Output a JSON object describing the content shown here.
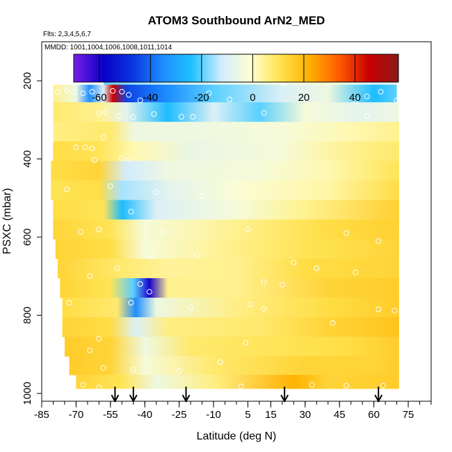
{
  "chart_data": {
    "type": "heatmap",
    "title": "ATOM3 Southbound ArN2_MED",
    "flights_label": "Flts: 2,3,4,5,6,7",
    "dates_label": "MMDD: 1001,1004,1006,1008,1011,1014",
    "xlabel": "Latitude (deg N)",
    "ylabel": "PSXC (mbar)",
    "xlim": [
      -85,
      85
    ],
    "ylim": [
      1020,
      100
    ],
    "x_ticks": [
      -85,
      -70,
      -55,
      -40,
      -25,
      -10,
      5,
      15,
      30,
      45,
      60,
      75
    ],
    "y_ticks": [
      200,
      400,
      600,
      800,
      1000
    ],
    "colorbar": {
      "range": [
        -70,
        57
      ],
      "ticks": [
        -60,
        -40,
        -20,
        0,
        20,
        40
      ],
      "colors": [
        "#7a1fe6",
        "#0a00c8",
        "#0a35e0",
        "#1e8cff",
        "#1ec2ff",
        "#d2ecff",
        "#ffffd0",
        "#ffe24d",
        "#ffb000",
        "#ff5a00",
        "#c80000",
        "#8b1a1a"
      ]
    },
    "rows": [
      {
        "p": 190,
        "lat_start": -58,
        "lat_end": 70,
        "values": [
          {
            "x": -58,
            "v": -20
          },
          {
            "x": -40,
            "v": -15
          },
          {
            "x": -20,
            "v": -10
          },
          {
            "x": 10,
            "v": -5
          },
          {
            "x": 40,
            "v": -2
          },
          {
            "x": 60,
            "v": -10
          },
          {
            "x": 70,
            "v": -8
          }
        ]
      },
      {
        "p": 230,
        "lat_start": -80,
        "lat_end": 70,
        "values": [
          {
            "x": -80,
            "v": 5
          },
          {
            "x": -70,
            "v": -5
          },
          {
            "x": -64,
            "v": -35
          },
          {
            "x": -58,
            "v": -10
          },
          {
            "x": -54,
            "v": 45
          },
          {
            "x": -48,
            "v": -45
          },
          {
            "x": -30,
            "v": -35
          },
          {
            "x": -10,
            "v": -20
          },
          {
            "x": 20,
            "v": -10
          },
          {
            "x": 40,
            "v": -5
          },
          {
            "x": 60,
            "v": -25
          },
          {
            "x": 70,
            "v": -20
          }
        ]
      },
      {
        "p": 280,
        "lat_start": -80,
        "lat_end": 71,
        "values": [
          {
            "x": -80,
            "v": 8
          },
          {
            "x": -60,
            "v": 5
          },
          {
            "x": -48,
            "v": -8
          },
          {
            "x": -30,
            "v": -25
          },
          {
            "x": -10,
            "v": -10
          },
          {
            "x": 10,
            "v": -20
          },
          {
            "x": 30,
            "v": -3
          },
          {
            "x": 55,
            "v": -8
          },
          {
            "x": 71,
            "v": -5
          }
        ]
      },
      {
        "p": 330,
        "lat_start": -80,
        "lat_end": 71,
        "values": [
          {
            "x": -80,
            "v": 6
          },
          {
            "x": -55,
            "v": 8
          },
          {
            "x": -45,
            "v": -5
          },
          {
            "x": -20,
            "v": -5
          },
          {
            "x": 20,
            "v": -3
          },
          {
            "x": 50,
            "v": 2
          },
          {
            "x": 71,
            "v": 5
          }
        ]
      },
      {
        "p": 380,
        "lat_start": -80,
        "lat_end": 71,
        "values": [
          {
            "x": -80,
            "v": 12
          },
          {
            "x": -60,
            "v": 10
          },
          {
            "x": -45,
            "v": 2
          },
          {
            "x": -20,
            "v": -6
          },
          {
            "x": 20,
            "v": -3
          },
          {
            "x": 50,
            "v": 5
          },
          {
            "x": 71,
            "v": 8
          }
        ]
      },
      {
        "p": 430,
        "lat_start": -81,
        "lat_end": 71,
        "values": [
          {
            "x": -81,
            "v": 12
          },
          {
            "x": -60,
            "v": 14
          },
          {
            "x": -48,
            "v": -12
          },
          {
            "x": -30,
            "v": -5
          },
          {
            "x": 10,
            "v": -3
          },
          {
            "x": 40,
            "v": 2
          },
          {
            "x": 71,
            "v": 10
          }
        ]
      },
      {
        "p": 480,
        "lat_start": -81,
        "lat_end": 71,
        "values": [
          {
            "x": -81,
            "v": 10
          },
          {
            "x": -60,
            "v": 12
          },
          {
            "x": -50,
            "v": -15
          },
          {
            "x": -30,
            "v": -8
          },
          {
            "x": 0,
            "v": -2
          },
          {
            "x": 40,
            "v": 3
          },
          {
            "x": 71,
            "v": 12
          }
        ]
      },
      {
        "p": 530,
        "lat_start": -80,
        "lat_end": 71,
        "values": [
          {
            "x": -80,
            "v": 12
          },
          {
            "x": -58,
            "v": 10
          },
          {
            "x": -50,
            "v": -25
          },
          {
            "x": -35,
            "v": -10
          },
          {
            "x": 0,
            "v": -3
          },
          {
            "x": 30,
            "v": 5
          },
          {
            "x": 71,
            "v": 15
          }
        ]
      },
      {
        "p": 580,
        "lat_start": -80,
        "lat_end": 71,
        "values": [
          {
            "x": -80,
            "v": 14
          },
          {
            "x": -55,
            "v": 10
          },
          {
            "x": -40,
            "v": -3
          },
          {
            "x": 0,
            "v": 5
          },
          {
            "x": 40,
            "v": 12
          },
          {
            "x": 71,
            "v": 15
          }
        ]
      },
      {
        "p": 630,
        "lat_start": -79,
        "lat_end": 71,
        "values": [
          {
            "x": -79,
            "v": 14
          },
          {
            "x": -55,
            "v": 12
          },
          {
            "x": -40,
            "v": -3
          },
          {
            "x": -10,
            "v": 4
          },
          {
            "x": 30,
            "v": 10
          },
          {
            "x": 71,
            "v": 14
          }
        ]
      },
      {
        "p": 680,
        "lat_start": -78,
        "lat_end": 71,
        "values": [
          {
            "x": -78,
            "v": 14
          },
          {
            "x": -50,
            "v": 8
          },
          {
            "x": -30,
            "v": 4
          },
          {
            "x": 0,
            "v": 5
          },
          {
            "x": 30,
            "v": 12
          },
          {
            "x": 71,
            "v": 14
          }
        ]
      },
      {
        "p": 730,
        "lat_start": -77,
        "lat_end": 71,
        "values": [
          {
            "x": -77,
            "v": 14
          },
          {
            "x": -55,
            "v": 10
          },
          {
            "x": -45,
            "v": -20
          },
          {
            "x": -38,
            "v": -60
          },
          {
            "x": -30,
            "v": 5
          },
          {
            "x": 0,
            "v": 5
          },
          {
            "x": 40,
            "v": 14
          },
          {
            "x": 71,
            "v": 16
          }
        ]
      },
      {
        "p": 780,
        "lat_start": -76,
        "lat_end": 71,
        "values": [
          {
            "x": -76,
            "v": 12
          },
          {
            "x": -52,
            "v": 8
          },
          {
            "x": -44,
            "v": -35
          },
          {
            "x": -35,
            "v": -5
          },
          {
            "x": 0,
            "v": 6
          },
          {
            "x": 40,
            "v": 12
          },
          {
            "x": 71,
            "v": 16
          }
        ]
      },
      {
        "p": 830,
        "lat_start": -76,
        "lat_end": 71,
        "values": [
          {
            "x": -76,
            "v": 14
          },
          {
            "x": -55,
            "v": 12
          },
          {
            "x": -44,
            "v": -10
          },
          {
            "x": -30,
            "v": 6
          },
          {
            "x": 10,
            "v": 8
          },
          {
            "x": 40,
            "v": 14
          },
          {
            "x": 71,
            "v": 18
          }
        ]
      },
      {
        "p": 880,
        "lat_start": -75,
        "lat_end": 71,
        "values": [
          {
            "x": -75,
            "v": 16
          },
          {
            "x": -55,
            "v": 14
          },
          {
            "x": -40,
            "v": -5
          },
          {
            "x": -20,
            "v": 8
          },
          {
            "x": 20,
            "v": 10
          },
          {
            "x": 50,
            "v": 12
          },
          {
            "x": 71,
            "v": 16
          }
        ]
      },
      {
        "p": 930,
        "lat_start": -73,
        "lat_end": 71,
        "values": [
          {
            "x": -73,
            "v": 16
          },
          {
            "x": -55,
            "v": 14
          },
          {
            "x": -40,
            "v": -3
          },
          {
            "x": -10,
            "v": 8
          },
          {
            "x": 30,
            "v": 14
          },
          {
            "x": 60,
            "v": 14
          },
          {
            "x": 71,
            "v": 16
          }
        ]
      },
      {
        "p": 975,
        "lat_start": -70,
        "lat_end": 71,
        "values": [
          {
            "x": -70,
            "v": 14
          },
          {
            "x": -50,
            "v": 10
          },
          {
            "x": -35,
            "v": -5
          },
          {
            "x": -10,
            "v": 6
          },
          {
            "x": 25,
            "v": 22
          },
          {
            "x": 40,
            "v": 14
          },
          {
            "x": 71,
            "v": 16
          }
        ]
      }
    ],
    "sample_points": [
      {
        "x": -55,
        "p": 190
      },
      {
        "x": -52,
        "p": 198
      },
      {
        "x": -78,
        "p": 228
      },
      {
        "x": -74,
        "p": 225
      },
      {
        "x": -71,
        "p": 230
      },
      {
        "x": -67,
        "p": 232
      },
      {
        "x": -63,
        "p": 228
      },
      {
        "x": -60,
        "p": 240
      },
      {
        "x": -54,
        "p": 226
      },
      {
        "x": -50,
        "p": 228
      },
      {
        "x": -47,
        "p": 236
      },
      {
        "x": -42,
        "p": 250
      },
      {
        "x": -12,
        "p": 232
      },
      {
        "x": -3,
        "p": 248
      },
      {
        "x": 20,
        "p": 205
      },
      {
        "x": 21,
        "p": 205
      },
      {
        "x": 52,
        "p": 250
      },
      {
        "x": 57,
        "p": 240
      },
      {
        "x": 63,
        "p": 228
      },
      {
        "x": 70,
        "p": 250
      },
      {
        "x": -60,
        "p": 283
      },
      {
        "x": -57,
        "p": 280
      },
      {
        "x": -51,
        "p": 290
      },
      {
        "x": -45,
        "p": 293
      },
      {
        "x": -36,
        "p": 285
      },
      {
        "x": -24,
        "p": 292
      },
      {
        "x": -19,
        "p": 292
      },
      {
        "x": 12,
        "p": 282
      },
      {
        "x": 57,
        "p": 290
      },
      {
        "x": -58,
        "p": 345
      },
      {
        "x": -66,
        "p": 370
      },
      {
        "x": -70,
        "p": 370
      },
      {
        "x": -63,
        "p": 373
      },
      {
        "x": -50,
        "p": 398
      },
      {
        "x": -47,
        "p": 400
      },
      {
        "x": -62,
        "p": 403
      },
      {
        "x": -55,
        "p": 470
      },
      {
        "x": -74,
        "p": 478
      },
      {
        "x": -35,
        "p": 485
      },
      {
        "x": -15,
        "p": 495
      },
      {
        "x": -46,
        "p": 535
      },
      {
        "x": -60,
        "p": 580
      },
      {
        "x": -68,
        "p": 586
      },
      {
        "x": -32,
        "p": 587
      },
      {
        "x": 5,
        "p": 580
      },
      {
        "x": 48,
        "p": 590
      },
      {
        "x": 62,
        "p": 610
      },
      {
        "x": -17,
        "p": 645
      },
      {
        "x": -37,
        "p": 650
      },
      {
        "x": -52,
        "p": 680
      },
      {
        "x": 25,
        "p": 665
      },
      {
        "x": 35,
        "p": 680
      },
      {
        "x": 52,
        "p": 690
      },
      {
        "x": -64,
        "p": 700
      },
      {
        "x": -42,
        "p": 720
      },
      {
        "x": -38,
        "p": 740
      },
      {
        "x": 12,
        "p": 715
      },
      {
        "x": 20,
        "p": 722
      },
      {
        "x": -73,
        "p": 768
      },
      {
        "x": -20,
        "p": 780
      },
      {
        "x": -46,
        "p": 768
      },
      {
        "x": 6,
        "p": 772
      },
      {
        "x": 12,
        "p": 783
      },
      {
        "x": 62,
        "p": 785
      },
      {
        "x": 69,
        "p": 788
      },
      {
        "x": 42,
        "p": 820
      },
      {
        "x": -60,
        "p": 860
      },
      {
        "x": -64,
        "p": 890
      },
      {
        "x": 4,
        "p": 870
      },
      {
        "x": -74,
        "p": 930
      },
      {
        "x": -58,
        "p": 935
      },
      {
        "x": -45,
        "p": 940
      },
      {
        "x": -25,
        "p": 943
      },
      {
        "x": -7,
        "p": 920
      },
      {
        "x": 48,
        "p": 980
      },
      {
        "x": 64,
        "p": 980
      },
      {
        "x": -60,
        "p": 985
      },
      {
        "x": -67,
        "p": 978
      },
      {
        "x": 2,
        "p": 982
      },
      {
        "x": 33,
        "p": 978
      }
    ],
    "arrows_lat": [
      -53,
      -45,
      -22,
      21,
      62
    ]
  }
}
